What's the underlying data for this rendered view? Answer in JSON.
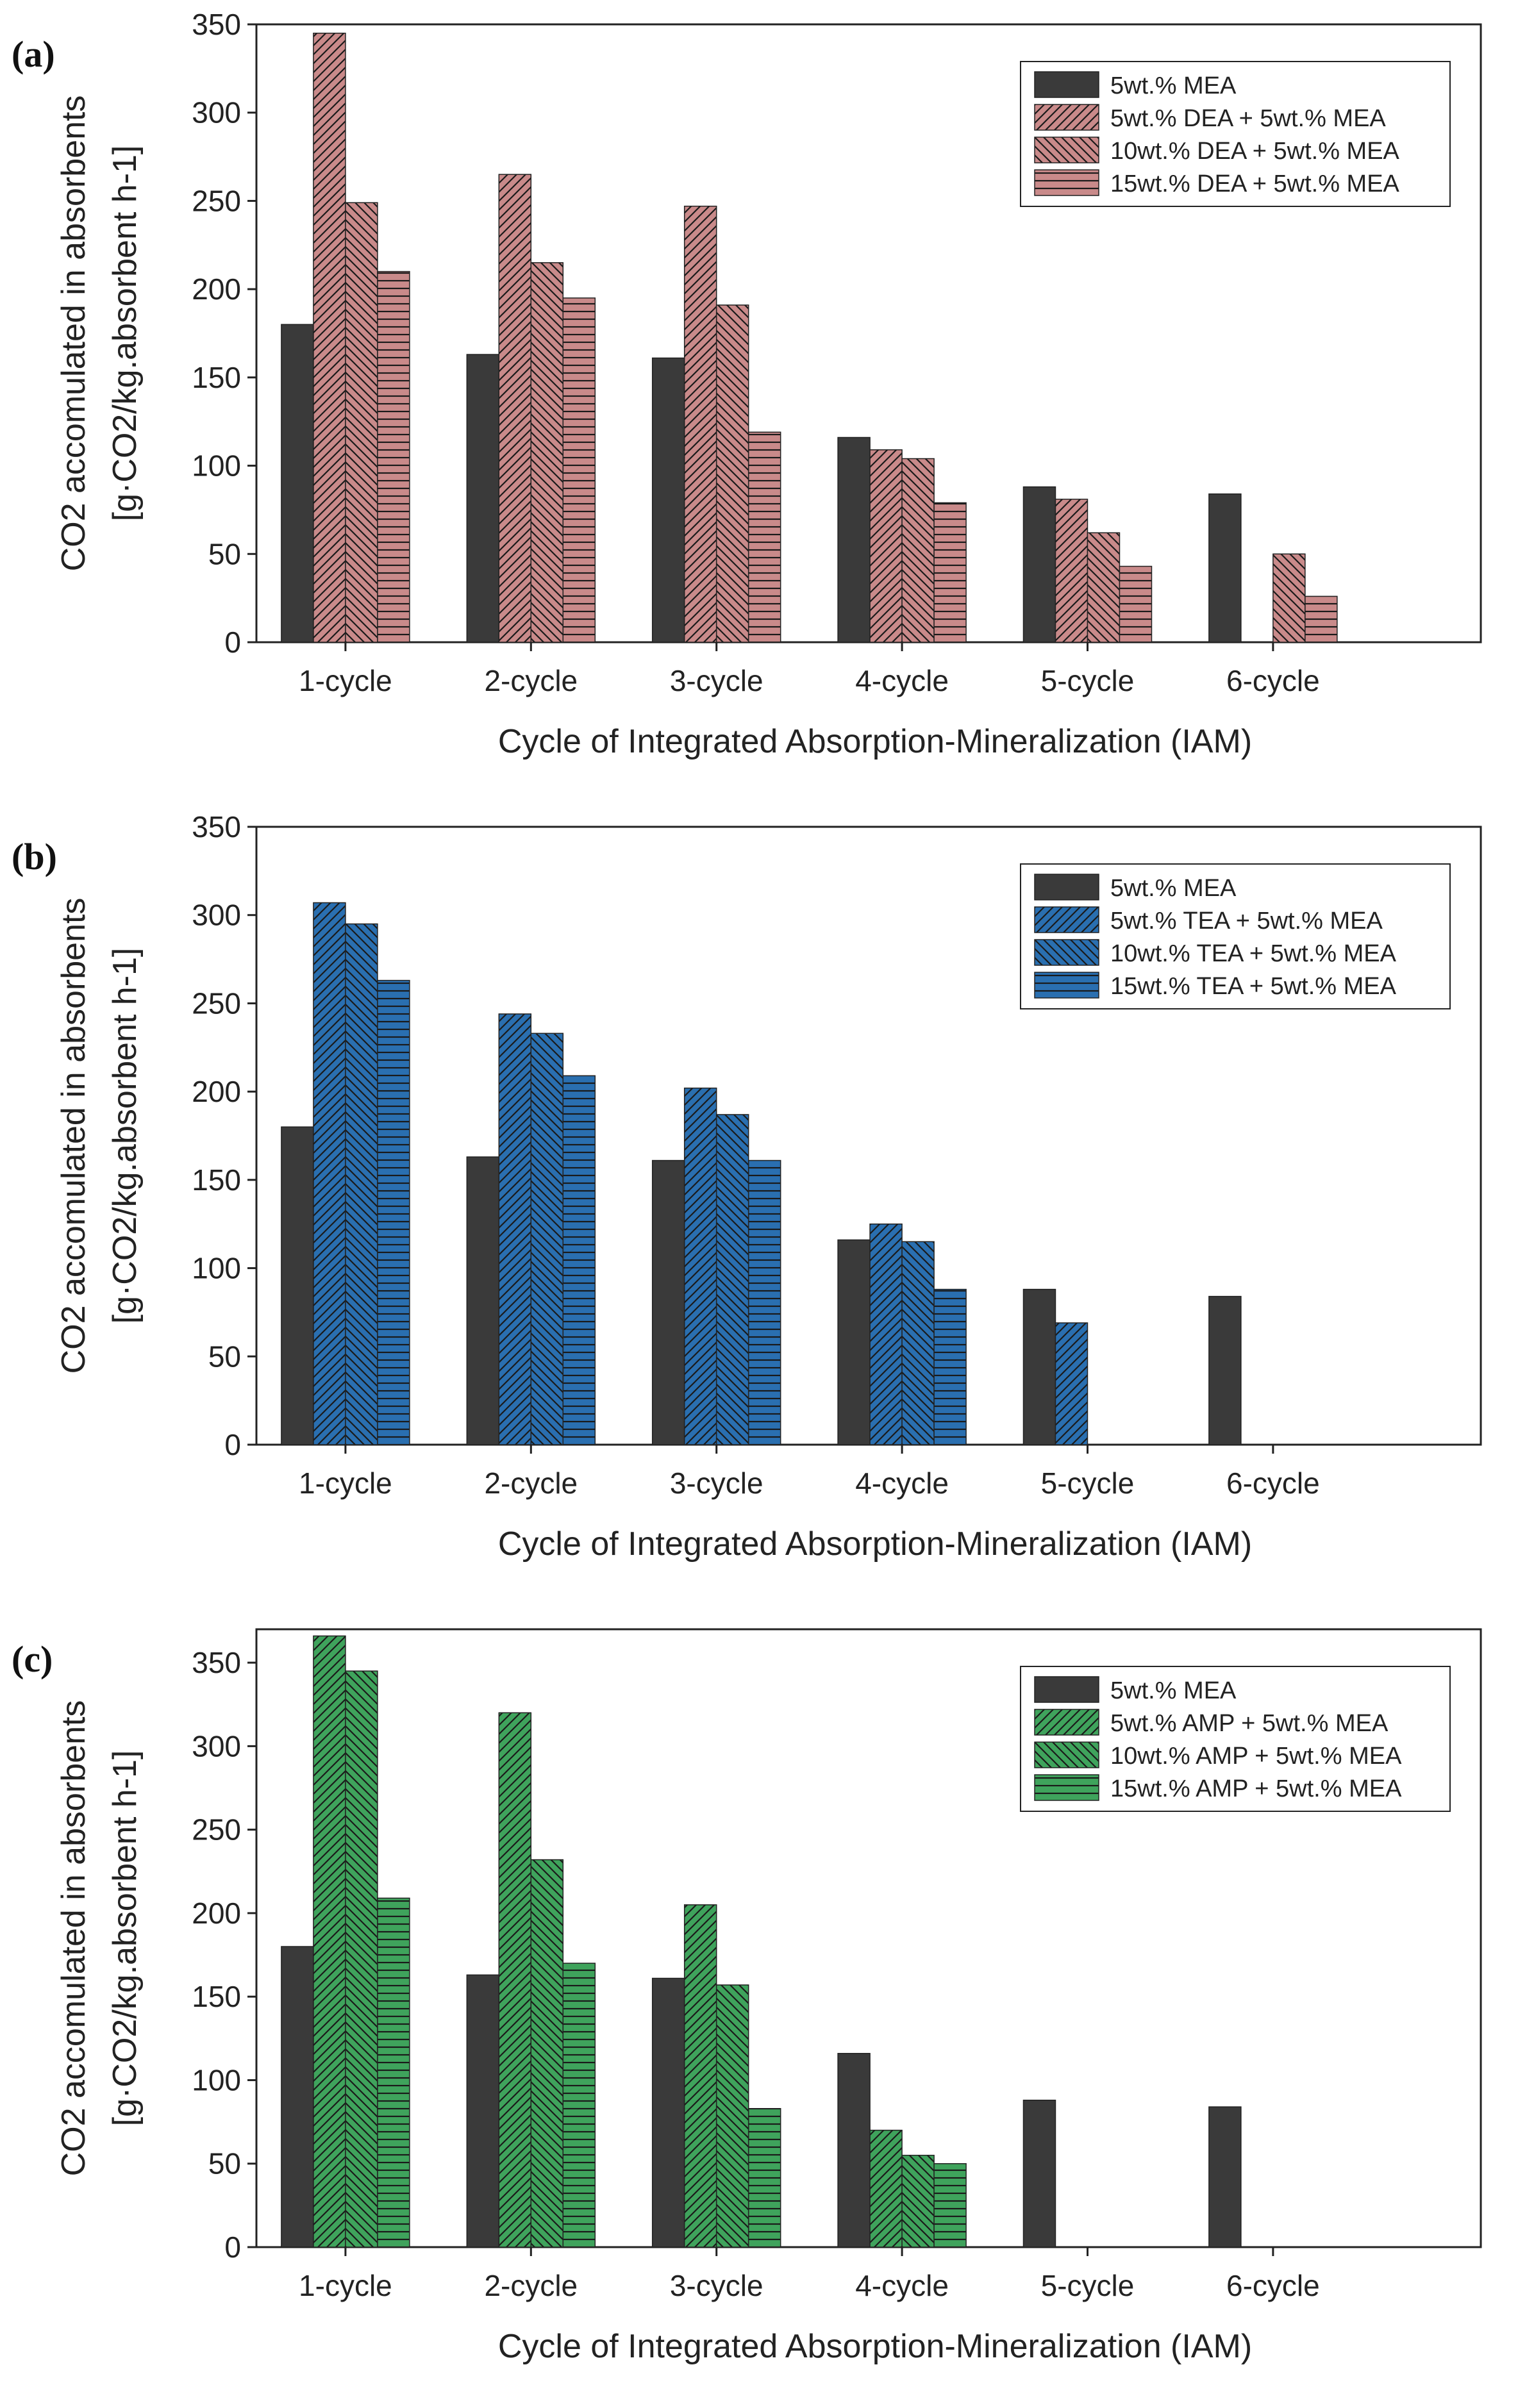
{
  "chart_data": [
    {
      "type": "bar",
      "panel_label": "(a)",
      "title": "",
      "xlabel": "Cycle of Integrated Absorption-Mineralization (IAM)",
      "ylabel_line1": "CO2 accomulated in absorbents",
      "ylabel_line2": "[g·CO2/kg.absorbent h-1]",
      "ylim": [
        0,
        350
      ],
      "yticks": [
        0,
        50,
        100,
        150,
        200,
        250,
        300,
        350
      ],
      "categories": [
        "1-cycle",
        "2-cycle",
        "3-cycle",
        "4-cycle",
        "5-cycle",
        "6-cycle"
      ],
      "legend_position": "top-right",
      "accent_color": "#c98a8a",
      "series": [
        {
          "name": "5wt.% MEA",
          "pattern": "solid",
          "values": [
            180,
            163,
            161,
            116,
            88,
            84
          ]
        },
        {
          "name": "5wt.% DEA + 5wt.% MEA",
          "pattern": "diag-up",
          "values": [
            345,
            265,
            247,
            109,
            81,
            0
          ]
        },
        {
          "name": "10wt.% DEA + 5wt.% MEA",
          "pattern": "diag-down",
          "values": [
            249,
            215,
            191,
            104,
            62,
            50
          ]
        },
        {
          "name": "15wt.% DEA + 5wt.% MEA",
          "pattern": "horizontal",
          "values": [
            210,
            195,
            119,
            79,
            43,
            26
          ]
        }
      ]
    },
    {
      "type": "bar",
      "panel_label": "(b)",
      "title": "",
      "xlabel": "Cycle of Integrated Absorption-Mineralization (IAM)",
      "ylabel_line1": "CO2 accomulated in absorbents",
      "ylabel_line2": "[g·CO2/kg.absorbent h-1]",
      "ylim": [
        0,
        350
      ],
      "yticks": [
        0,
        50,
        100,
        150,
        200,
        250,
        300,
        350
      ],
      "categories": [
        "1-cycle",
        "2-cycle",
        "3-cycle",
        "4-cycle",
        "5-cycle",
        "6-cycle"
      ],
      "legend_position": "top-right",
      "accent_color": "#2a6fb0",
      "series": [
        {
          "name": "5wt.% MEA",
          "pattern": "solid",
          "values": [
            180,
            163,
            161,
            116,
            88,
            84
          ]
        },
        {
          "name": "5wt.% TEA + 5wt.% MEA",
          "pattern": "diag-up",
          "values": [
            307,
            244,
            202,
            125,
            69,
            0
          ]
        },
        {
          "name": "10wt.% TEA + 5wt.% MEA",
          "pattern": "diag-down",
          "values": [
            295,
            233,
            187,
            115,
            0,
            0
          ]
        },
        {
          "name": "15wt.% TEA + 5wt.% MEA",
          "pattern": "horizontal",
          "values": [
            263,
            209,
            161,
            88,
            0,
            0
          ]
        }
      ]
    },
    {
      "type": "bar",
      "panel_label": "(c)",
      "title": "",
      "xlabel": "Cycle of Integrated Absorption-Mineralization (IAM)",
      "ylabel_line1": "CO2 accomulated in absorbents",
      "ylabel_line2": "[g·CO2/kg.absorbent h-1]",
      "ylim": [
        0,
        370
      ],
      "yticks": [
        0,
        50,
        100,
        150,
        200,
        250,
        300,
        350
      ],
      "categories": [
        "1-cycle",
        "2-cycle",
        "3-cycle",
        "4-cycle",
        "5-cycle",
        "6-cycle"
      ],
      "legend_position": "top-right",
      "accent_color": "#3fa35c",
      "series": [
        {
          "name": "5wt.% MEA",
          "pattern": "solid",
          "values": [
            180,
            163,
            161,
            116,
            88,
            84
          ]
        },
        {
          "name": "5wt.% AMP + 5wt.% MEA",
          "pattern": "diag-up",
          "values": [
            366,
            320,
            205,
            70,
            0,
            0
          ]
        },
        {
          "name": "10wt.% AMP + 5wt.% MEA",
          "pattern": "diag-down",
          "values": [
            345,
            232,
            157,
            55,
            0,
            0
          ]
        },
        {
          "name": "15wt.% AMP + 5wt.% MEA",
          "pattern": "horizontal",
          "values": [
            209,
            170,
            83,
            50,
            0,
            0
          ]
        }
      ]
    }
  ],
  "colors": {
    "mea_bar": "#3a3a3a",
    "axis": "#222222",
    "hatch": "#1a1a1a"
  }
}
